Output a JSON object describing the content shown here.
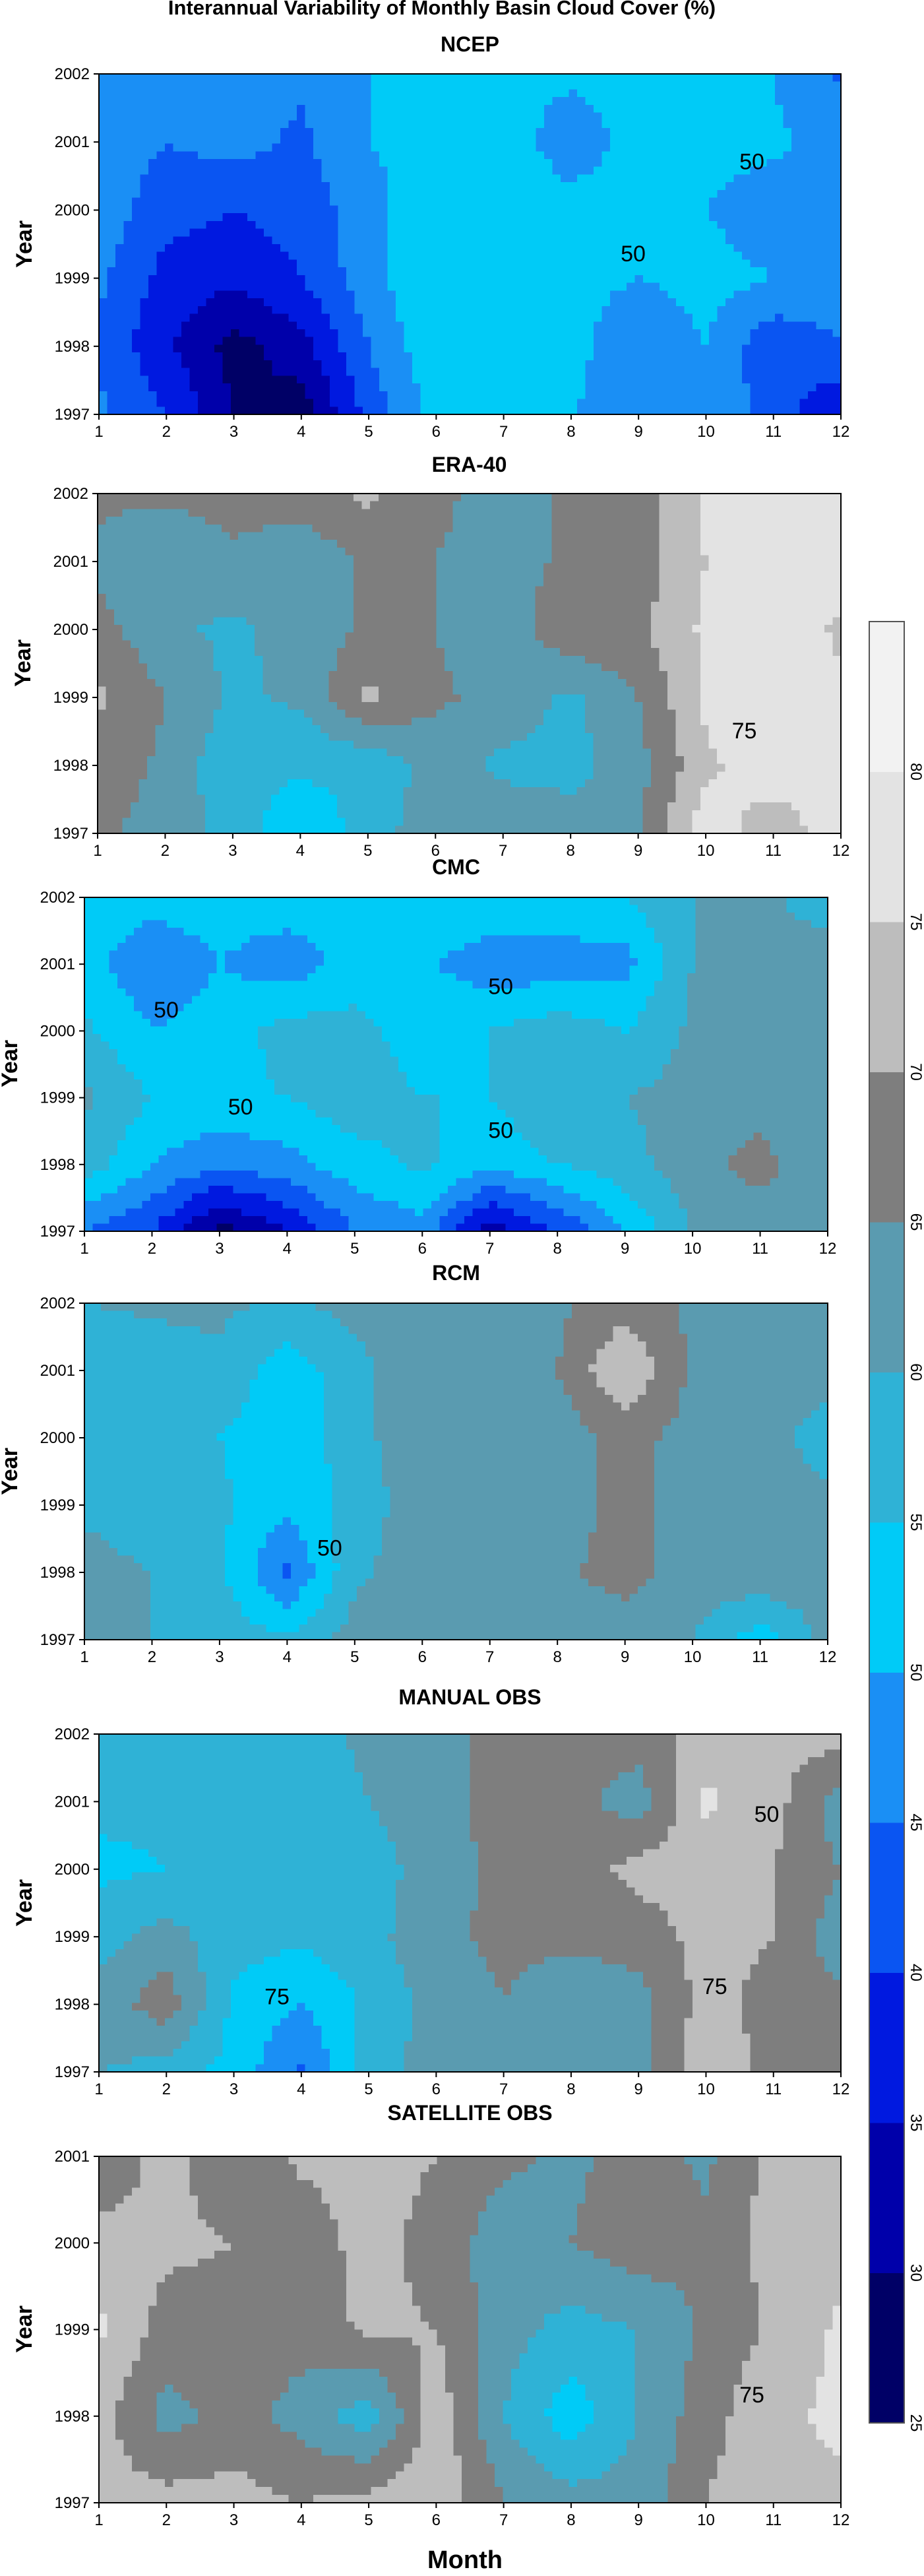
{
  "figure": {
    "title": "Interannual Variability of Monthly Basin Cloud Cover (%)",
    "xlabel": "Month",
    "colorbar_ticks": [
      "25",
      "30",
      "35",
      "40",
      "45",
      "50",
      "55",
      "60",
      "65",
      "70",
      "75",
      "80"
    ],
    "palette": {
      "25-30": "#000066",
      "30-35": "#0000aa",
      "35-40": "#0019e0",
      "40-45": "#0a55f2",
      "45-50": "#1a8ff5",
      "50-55": "#00cbf7",
      "55-60": "#2fb2d6",
      "60-65": "#5a9bb0",
      "65-70": "#7e7e7e",
      "70-75": "#bdbdbd",
      "75-80": "#e3e3e3",
      "80+": "#f2f2f2"
    }
  },
  "chart_data": [
    {
      "type": "heatmap",
      "title": "NCEP",
      "ylabel": "Year",
      "x": [
        1,
        2,
        3,
        4,
        5,
        6,
        7,
        8,
        9,
        10,
        11,
        12
      ],
      "y": [
        1997,
        1998,
        1999,
        2000,
        2001,
        2002
      ],
      "grid": false,
      "z": [
        [
          46,
          40,
          30,
          27,
          42,
          52,
          50,
          50,
          48,
          50,
          42,
          36
        ],
        [
          44,
          36,
          28,
          33,
          45,
          54,
          53,
          52,
          45,
          50,
          41,
          44
        ],
        [
          46,
          38,
          36,
          40,
          48,
          55,
          53,
          52,
          50,
          52,
          50,
          50
        ],
        [
          48,
          42,
          40,
          42,
          48,
          54,
          53,
          52,
          52,
          50,
          47,
          46
        ],
        [
          48,
          45,
          47,
          44,
          50,
          52,
          53,
          47,
          52,
          52,
          51,
          48
        ],
        [
          46,
          49,
          47,
          46,
          50,
          51,
          51,
          51,
          52,
          52,
          50,
          44
        ]
      ],
      "contour_labels": [
        "50",
        "50"
      ]
    },
    {
      "type": "heatmap",
      "title": "ERA-40",
      "ylabel": "Year",
      "x": [
        1,
        2,
        3,
        4,
        5,
        6,
        7,
        8,
        9,
        10,
        11,
        12
      ],
      "y": [
        1997,
        1998,
        1999,
        2000,
        2001,
        2002
      ],
      "grid": false,
      "z": [
        [
          66,
          63,
          58,
          51,
          57,
          64,
          63,
          63,
          65,
          78,
          72,
          78
        ],
        [
          68,
          64,
          56,
          56,
          56,
          62,
          59,
          58,
          63,
          74,
          78,
          76
        ],
        [
          71,
          65,
          59,
          61,
          71,
          66,
          63,
          59,
          65,
          76,
          79,
          76
        ],
        [
          67,
          61,
          59,
          62,
          66,
          65,
          62,
          69,
          69,
          76,
          79,
          74
        ],
        [
          64,
          60,
          64,
          61,
          66,
          65,
          63,
          66,
          67,
          75,
          79,
          78
        ],
        [
          66,
          66,
          67,
          68,
          71,
          66,
          63,
          66,
          68,
          76,
          80,
          76
        ]
      ],
      "contour_labels": [
        "75"
      ]
    },
    {
      "type": "heatmap",
      "title": "CMC",
      "ylabel": "Year",
      "x": [
        1,
        2,
        3,
        4,
        5,
        6,
        7,
        8,
        9,
        10,
        11,
        12
      ],
      "y": [
        1997,
        1998,
        1999,
        2000,
        2001,
        2002
      ],
      "grid": false,
      "z": [
        [
          45,
          40,
          28,
          35,
          45,
          48,
          32,
          40,
          50,
          60,
          62,
          62
        ],
        [
          58,
          50,
          46,
          48,
          53,
          56,
          51,
          55,
          58,
          63,
          67,
          60
        ],
        [
          61,
          55,
          54,
          55,
          58,
          55,
          55,
          60,
          60,
          62,
          63,
          60
        ],
        [
          56,
          50,
          52,
          57,
          57,
          52,
          55,
          58,
          55,
          61,
          62,
          60
        ],
        [
          52,
          46,
          50,
          47,
          52,
          51,
          47,
          47,
          48,
          60,
          61,
          62
        ],
        [
          54,
          52,
          52,
          53,
          53,
          53,
          54,
          54,
          55,
          60,
          61,
          58
        ]
      ],
      "contour_labels": [
        "50",
        "50",
        "50",
        "50"
      ]
    },
    {
      "type": "heatmap",
      "title": "RCM",
      "ylabel": "Year",
      "x": [
        1,
        2,
        3,
        4,
        5,
        6,
        7,
        8,
        9,
        10,
        11,
        12
      ],
      "y": [
        1997,
        1998,
        1999,
        2000,
        2001,
        2002
      ],
      "grid": false,
      "z": [
        [
          62,
          60,
          58,
          56,
          62,
          64,
          61,
          63,
          62,
          60,
          52,
          62
        ],
        [
          62,
          60,
          56,
          44,
          59,
          63,
          60,
          64,
          67,
          63,
          64,
          63
        ],
        [
          59,
          57,
          56,
          51,
          57,
          63,
          61,
          62,
          67,
          62,
          63,
          62
        ],
        [
          57,
          56,
          55,
          51,
          58,
          64,
          62,
          62,
          67,
          63,
          63,
          57
        ],
        [
          55,
          57,
          59,
          52,
          58,
          65,
          63,
          65,
          75,
          64,
          62,
          63
        ],
        [
          60,
          61,
          61,
          59,
          62,
          64,
          64,
          64,
          68,
          64,
          62,
          65
        ]
      ],
      "contour_labels": [
        "50"
      ]
    },
    {
      "type": "heatmap",
      "title": "MANUAL OBS",
      "ylabel": "Year",
      "x": [
        1,
        2,
        3,
        4,
        5,
        6,
        7,
        8,
        9,
        10,
        11,
        12
      ],
      "y": [
        1997,
        1998,
        1999,
        2000,
        2001,
        2002
      ],
      "grid": false,
      "z": [
        [
          60,
          58,
          53,
          44,
          58,
          62,
          64,
          62,
          63,
          74,
          68,
          65
        ],
        [
          62,
          68,
          54,
          50,
          56,
          62,
          65,
          62,
          63,
          72,
          68,
          66
        ],
        [
          58,
          62,
          57,
          56,
          58,
          64,
          66,
          66,
          67,
          72,
          70,
          62
        ],
        [
          54,
          55,
          55,
          56,
          58,
          62,
          67,
          67,
          72,
          72,
          70,
          65
        ],
        [
          56,
          56,
          57,
          57,
          60,
          63,
          67,
          67,
          62,
          76,
          72,
          62
        ],
        [
          60,
          59,
          60,
          58,
          61,
          64,
          66,
          67,
          68,
          72,
          72,
          72
        ]
      ],
      "contour_labels": [
        "50",
        "75",
        "75"
      ]
    },
    {
      "type": "heatmap",
      "title": "SATELLITE OBS",
      "ylabel": "Year",
      "xlabel": "Month",
      "x": [
        1,
        2,
        3,
        4,
        5,
        6,
        7,
        8,
        9,
        10,
        11,
        12
      ],
      "y": [
        1997,
        1998,
        1999,
        2000,
        2001
      ],
      "grid": false,
      "z": [
        [
          72,
          72,
          72,
          70,
          72,
          74,
          65,
          62,
          62,
          70,
          74,
          74
        ],
        [
          72,
          63,
          67,
          63,
          57,
          73,
          60,
          52,
          60,
          68,
          74,
          76
        ],
        [
          76,
          68,
          68,
          67,
          71,
          70,
          62,
          58,
          60,
          66,
          71,
          76
        ],
        [
          72,
          71,
          70,
          67,
          72,
          68,
          62,
          65,
          68,
          66,
          72,
          73
        ],
        [
          66,
          72,
          66,
          71,
          72,
          70,
          66,
          64,
          67,
          64,
          72,
          72
        ]
      ],
      "contour_labels": [
        "75"
      ]
    }
  ]
}
